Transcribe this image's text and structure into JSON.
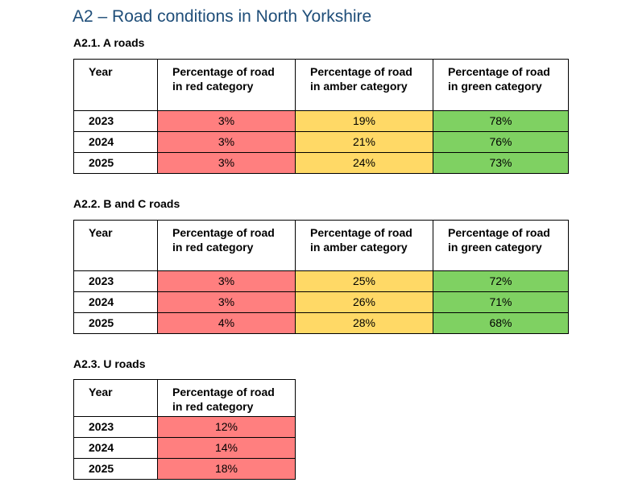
{
  "title": "A2 – Road conditions in North Yorkshire",
  "headers": {
    "year": "Year",
    "red": "Percentage of road in red category",
    "amber": "Percentage of road in amber category",
    "green": "Percentage of road in green category"
  },
  "a_roads": {
    "heading": "A2.1. A roads",
    "rows": [
      {
        "year": "2023",
        "red": "3%",
        "amber": "19%",
        "green": "78%"
      },
      {
        "year": "2024",
        "red": "3%",
        "amber": "21%",
        "green": "76%"
      },
      {
        "year": "2025",
        "red": "3%",
        "amber": "24%",
        "green": "73%"
      }
    ]
  },
  "bc_roads": {
    "heading": "A2.2. B and C roads",
    "rows": [
      {
        "year": "2023",
        "red": "3%",
        "amber": "25%",
        "green": "72%"
      },
      {
        "year": "2024",
        "red": "3%",
        "amber": "26%",
        "green": "71%"
      },
      {
        "year": "2025",
        "red": "4%",
        "amber": "28%",
        "green": "68%"
      }
    ]
  },
  "u_roads": {
    "heading": "A2.3. U roads",
    "rows": [
      {
        "year": "2023",
        "red": "12%"
      },
      {
        "year": "2024",
        "red": "14%"
      },
      {
        "year": "2025",
        "red": "18%"
      }
    ]
  },
  "colors": {
    "title": "#1f4e79",
    "red": "#ff7f7f",
    "amber": "#ffd966",
    "green": "#7fd162"
  }
}
